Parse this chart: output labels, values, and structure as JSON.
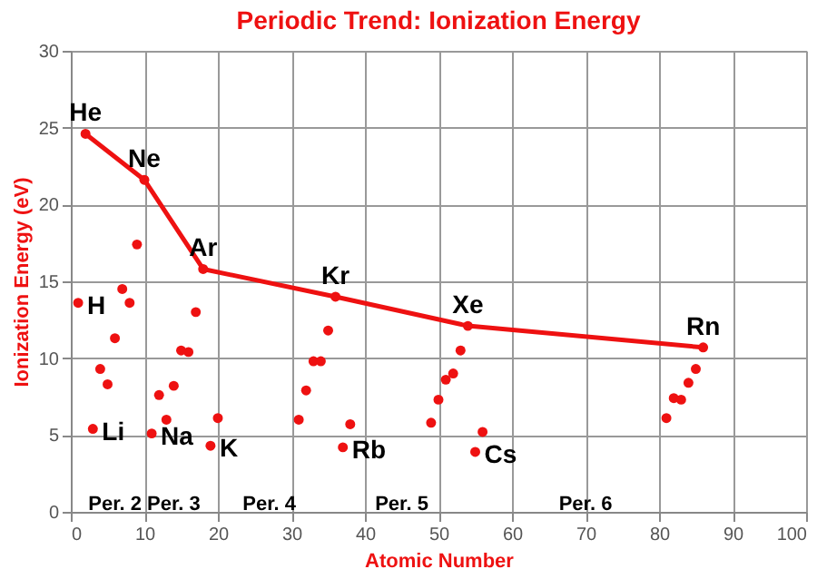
{
  "chart_data": {
    "type": "scatter",
    "title": "Periodic Trend: Ionization Energy",
    "xlabel": "Atomic Number",
    "ylabel": "Ionization Energy (eV)",
    "xlim": [
      0,
      100
    ],
    "xticks": [
      0,
      10,
      20,
      30,
      40,
      50,
      60,
      70,
      80,
      90,
      100
    ],
    "ylim": [
      0,
      30
    ],
    "yticks": [
      0,
      5,
      10,
      15,
      20,
      25,
      30
    ],
    "grid": true,
    "marker": "circle",
    "series": [
      {
        "type": "line",
        "color": "#ee1111",
        "x": [
          2,
          10,
          18,
          36,
          54,
          86
        ],
        "values": [
          24.6,
          21.6,
          15.8,
          14.0,
          12.1,
          10.7
        ]
      },
      {
        "color": "#ee1111",
        "x": [
          1,
          3,
          4,
          5,
          6,
          7,
          8,
          9,
          11,
          12,
          13,
          14,
          15,
          16,
          17,
          19,
          20,
          31,
          32,
          33,
          34,
          35,
          37,
          38,
          49,
          50,
          51,
          52,
          53,
          55,
          56,
          81,
          82,
          83,
          84,
          85
        ],
        "values": [
          13.6,
          5.4,
          9.3,
          8.3,
          11.3,
          14.5,
          13.6,
          17.4,
          5.1,
          7.6,
          6.0,
          8.2,
          10.5,
          10.4,
          13.0,
          4.3,
          6.1,
          6.0,
          7.9,
          9.8,
          9.8,
          11.8,
          4.2,
          5.7,
          5.8,
          7.3,
          8.6,
          9.0,
          10.5,
          3.9,
          5.2,
          6.1,
          7.4,
          7.3,
          8.4,
          9.3
        ]
      }
    ],
    "annotations": [
      {
        "text": "He",
        "x": 2,
        "y": 24.6
      },
      {
        "text": "Ne",
        "x": 10,
        "y": 21.6
      },
      {
        "text": "Ar",
        "x": 18,
        "y": 15.8
      },
      {
        "text": "Kr",
        "x": 36,
        "y": 14.0
      },
      {
        "text": "Xe",
        "x": 54,
        "y": 12.1
      },
      {
        "text": "Rn",
        "x": 86,
        "y": 10.7
      },
      {
        "text": "H",
        "x": 1,
        "y": 13.6
      },
      {
        "text": "Li",
        "x": 3,
        "y": 5.4
      },
      {
        "text": "Na",
        "x": 11,
        "y": 5.1
      },
      {
        "text": "K",
        "x": 19,
        "y": 4.3
      },
      {
        "text": "Rb",
        "x": 37,
        "y": 4.2
      },
      {
        "text": "Cs",
        "x": 55,
        "y": 3.9
      },
      "Per. 2",
      "Per. 3",
      "Per. 4",
      "Per. 5",
      "Per. 6"
    ]
  }
}
